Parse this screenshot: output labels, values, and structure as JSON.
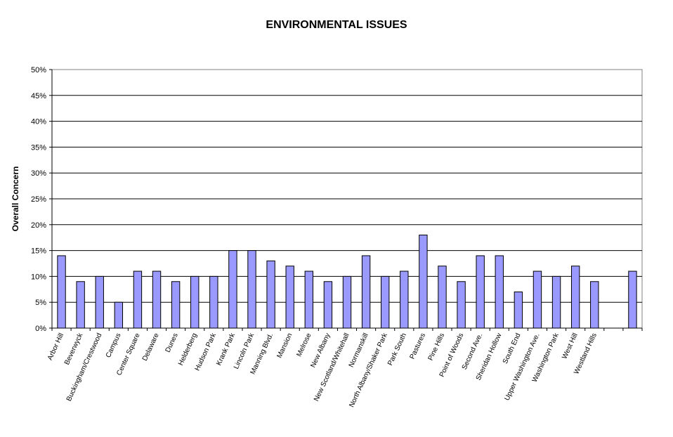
{
  "chart_data": {
    "type": "bar",
    "title": "ENVIRONMENTAL ISSUES",
    "xlabel": "",
    "ylabel": "Overall Concern",
    "ylim": [
      0,
      50
    ],
    "yticks": [
      "0%",
      "5%",
      "10%",
      "15%",
      "20%",
      "25%",
      "30%",
      "35%",
      "40%",
      "45%",
      "50%"
    ],
    "grid": true,
    "legend": "none",
    "colors": {
      "bar_fill": "#9999ff",
      "bar_stroke": "#000000",
      "grid": "#000000",
      "plot_border": "#808080"
    },
    "categories": [
      "Arbor Hill",
      "Beverwyck",
      "Buckingham/Crestwood",
      "Campus",
      "Center Square",
      "Delaware",
      "Dunes",
      "Helderberg",
      "Hudson Park",
      "Krank Park",
      "Lincoln Park",
      "Manning Blvd.",
      "Mansion",
      "Melrose",
      "New Albany",
      "New Scotland/Whitehall",
      "Normanskill",
      "North Albany/Shaker Park",
      "Park South",
      "Pastures",
      "Pine Hills",
      "Point of Woods",
      "Second Ave.",
      "Sheridan Hollow",
      "South End",
      "Upper Washington Ave.",
      "Washington Park",
      "West Hill",
      "Westland Hills",
      "",
      ""
    ],
    "values": [
      14,
      9,
      10,
      5,
      11,
      11,
      9,
      10,
      10,
      15,
      15,
      13,
      12,
      11,
      9,
      10,
      14,
      10,
      11,
      18,
      12,
      9,
      14,
      14,
      7,
      11,
      10,
      12,
      9,
      null,
      11
    ]
  }
}
